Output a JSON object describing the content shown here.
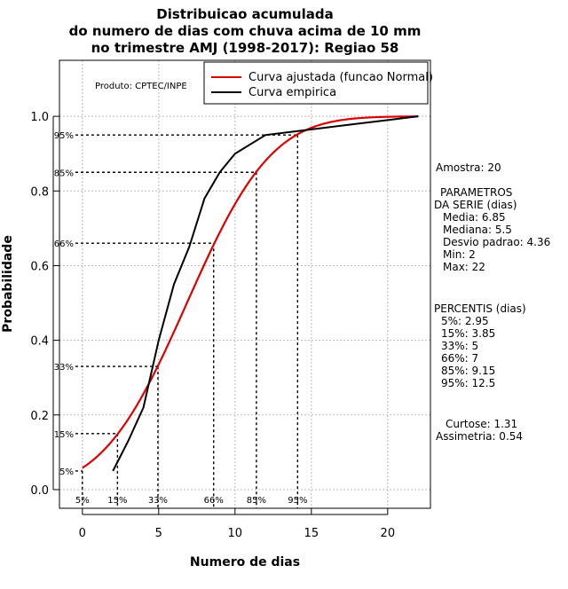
{
  "chart_data": {
    "type": "line",
    "title_lines": [
      "Distribuicao acumulada",
      "do numero de dias com chuva acima de 10 mm",
      "no trimestre AMJ (1998-2017): Regiao 58"
    ],
    "xlabel": "Numero de dias",
    "ylabel": "Probabilidade",
    "xlim": [
      -1.5,
      22.8
    ],
    "ylim": [
      -0.05,
      1.15
    ],
    "xticks": [
      0,
      5,
      10,
      15,
      20
    ],
    "yticks": [
      0.0,
      0.2,
      0.4,
      0.6,
      0.8,
      1.0
    ],
    "ytick_labels": [
      "0.0",
      "0.2",
      "0.4",
      "0.6",
      "0.8",
      "1.0"
    ],
    "grid": true,
    "product_label": "Produto: CPTEC/INPE",
    "legend": [
      {
        "label": "Curva ajustada (funcao Normal)",
        "color": "#dd0000"
      },
      {
        "label": "Curva empirica",
        "color": "#000000"
      }
    ],
    "series": [
      {
        "name": "Curva ajustada (funcao Normal)",
        "color": "#dd0000",
        "distribution": "normal",
        "mean": 6.85,
        "sd": 4.36,
        "x_range": [
          0,
          22
        ]
      },
      {
        "name": "Curva empirica",
        "color": "#000000",
        "x": [
          2,
          3,
          4,
          5,
          6,
          7,
          8,
          9,
          10,
          12,
          14,
          16,
          18,
          20,
          22
        ],
        "y": [
          0.05,
          0.13,
          0.22,
          0.4,
          0.55,
          0.65,
          0.78,
          0.85,
          0.9,
          0.95,
          0.96,
          0.97,
          0.98,
          0.99,
          1.0
        ]
      }
    ],
    "percentile_guides": [
      {
        "label": "5%",
        "x": 0,
        "y": 0.05
      },
      {
        "label": "15%",
        "x": 2.3,
        "y": 0.15
      },
      {
        "label": "33%",
        "x": 4.95,
        "y": 0.33
      },
      {
        "label": "66%",
        "x": 8.6,
        "y": 0.66
      },
      {
        "label": "85%",
        "x": 11.4,
        "y": 0.85
      },
      {
        "label": "95%",
        "x": 14.1,
        "y": 0.95
      }
    ]
  },
  "stats_panel": {
    "amostra": "Amostra: 20",
    "parametros_title_1": "PARAMETROS",
    "parametros_title_2": "DA SERIE (dias)",
    "media": "Media: 6.85",
    "mediana": "Mediana: 5.5",
    "desvio": "Desvio padrao: 4.36",
    "min": "Min: 2",
    "max": "Max: 22",
    "percentis_title": "PERCENTIS (dias)",
    "p5": "5%: 2.95",
    "p15": "15%: 3.85",
    "p33": "33%: 5",
    "p66": "66%: 7",
    "p85": "85%: 9.15",
    "p95": "95%: 12.5",
    "curtose": "Curtose: 1.31",
    "assimetria": "Assimetria: 0.54"
  }
}
